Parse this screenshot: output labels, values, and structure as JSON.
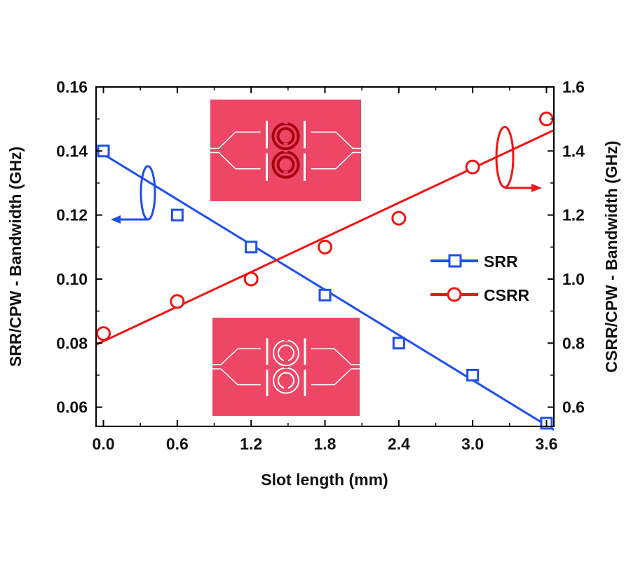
{
  "chart_data": {
    "type": "scatter",
    "title": "",
    "xlabel": "Slot length (mm)",
    "ylabel_left": "SRR/CPW - Bandwidth (GHz)",
    "ylabel_right": "CSRR/CPW - Bandwidth (GHz)",
    "xlim": [
      -0.06,
      3.66
    ],
    "ylim_left": [
      0.054,
      0.16
    ],
    "ylim_right": [
      0.54,
      1.6
    ],
    "x_ticks": [
      "0.0",
      "0.6",
      "1.2",
      "1.8",
      "2.4",
      "3.0",
      "3.6"
    ],
    "x_tick_values": [
      0.0,
      0.6,
      1.2,
      1.8,
      2.4,
      3.0,
      3.6
    ],
    "y_left_ticks": [
      "0.06",
      "0.08",
      "0.10",
      "0.12",
      "0.14",
      "0.16"
    ],
    "y_left_tick_values": [
      0.06,
      0.08,
      0.1,
      0.12,
      0.14,
      0.16
    ],
    "y_right_ticks": [
      "0.6",
      "0.8",
      "1.0",
      "1.2",
      "1.4",
      "1.6"
    ],
    "y_right_tick_values": [
      0.6,
      0.8,
      1.0,
      1.2,
      1.4,
      1.6
    ],
    "grid": false,
    "legend_position": "center-right",
    "series": [
      {
        "name": "SRR",
        "axis": "left",
        "marker": "square",
        "color": "#1f4ef0",
        "x": [
          0.0,
          0.6,
          1.2,
          1.8,
          2.4,
          3.0,
          3.6
        ],
        "values": [
          0.14,
          0.12,
          0.11,
          0.095,
          0.08,
          0.07,
          0.055
        ],
        "fit_line": {
          "x": [
            -0.06,
            3.66
          ],
          "y": [
            0.1404,
            0.0529
          ]
        }
      },
      {
        "name": "CSRR",
        "axis": "right",
        "marker": "circle",
        "color": "#f01414",
        "x": [
          0.0,
          0.6,
          1.2,
          1.8,
          2.4,
          3.0,
          3.6
        ],
        "values": [
          0.83,
          0.93,
          1.0,
          1.1,
          1.19,
          1.35,
          1.5
        ],
        "fit_line": {
          "x": [
            -0.06,
            3.66
          ],
          "y": [
            0.795,
            1.465
          ]
        }
      }
    ],
    "annotations": [
      {
        "type": "axis-indicator",
        "series": "SRR",
        "direction": "left"
      },
      {
        "type": "axis-indicator",
        "series": "CSRR",
        "direction": "right"
      },
      {
        "type": "inset-image",
        "label": "CSRR-loaded CPW layout",
        "position": "top-center"
      },
      {
        "type": "inset-image",
        "label": "SRR-loaded CPW layout",
        "position": "bottom-center"
      }
    ]
  },
  "colors": {
    "inset_bg": "#ee4766",
    "inset_line": "#ffffff",
    "csrr_ring": "#a80010"
  }
}
